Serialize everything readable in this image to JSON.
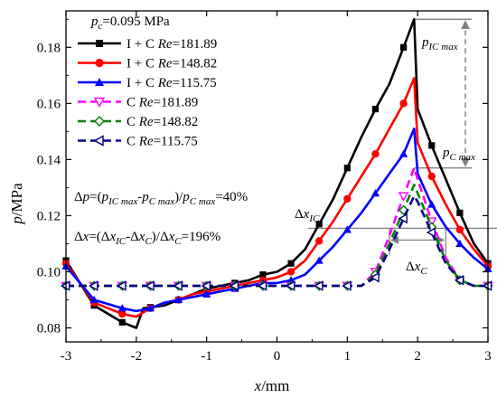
{
  "chart_data": {
    "type": "line",
    "xlabel": {
      "var": "x",
      "unit": "/mm"
    },
    "ylabel": {
      "var": "p",
      "unit": "/MPa"
    },
    "xlim": [
      -3,
      3
    ],
    "ylim": [
      0.075,
      0.193
    ],
    "xticks": [
      -3,
      -2,
      -1,
      0,
      1,
      2,
      3
    ],
    "yticks": [
      0.08,
      0.1,
      0.12,
      0.14,
      0.16,
      0.18
    ],
    "ytick_labels": [
      "0.08",
      "0.10",
      "0.12",
      "0.14",
      "0.16",
      "0.18"
    ],
    "grid": false,
    "legend": {
      "header": {
        "sym": "p",
        "sub": "c",
        "value": "=0.095 MPa"
      },
      "position": "top-left"
    },
    "series": [
      {
        "name": "I + C",
        "re": "181.89",
        "color": "#000000",
        "marker": "square",
        "dash": "solid",
        "x": [
          -3.0,
          -2.6,
          -2.2,
          -2.0,
          -1.9,
          -1.6,
          -1.4,
          -1.2,
          -1.0,
          -0.8,
          -0.6,
          -0.4,
          -0.2,
          0.0,
          0.2,
          0.4,
          0.6,
          0.8,
          1.0,
          1.2,
          1.4,
          1.6,
          1.8,
          1.95,
          2.0,
          2.2,
          2.4,
          2.6,
          2.8,
          3.0
        ],
        "y": [
          0.104,
          0.088,
          0.082,
          0.08,
          0.087,
          0.088,
          0.09,
          0.092,
          0.094,
          0.095,
          0.096,
          0.097,
          0.099,
          0.1,
          0.103,
          0.108,
          0.117,
          0.126,
          0.137,
          0.148,
          0.158,
          0.167,
          0.18,
          0.19,
          0.158,
          0.145,
          0.133,
          0.121,
          0.11,
          0.103
        ],
        "marker_x": [
          -3.0,
          -2.6,
          -2.2,
          -1.8,
          -1.4,
          -1.0,
          -0.6,
          -0.2,
          0.2,
          0.6,
          1.0,
          1.4,
          1.8,
          2.2,
          2.6,
          3.0
        ]
      },
      {
        "name": "I + C",
        "re": "148.82",
        "color": "#ff0000",
        "marker": "circle",
        "dash": "solid",
        "x": [
          -3.0,
          -2.6,
          -2.2,
          -2.0,
          -1.8,
          -1.6,
          -1.4,
          -1.2,
          -1.0,
          -0.8,
          -0.6,
          -0.4,
          -0.2,
          0.0,
          0.2,
          0.4,
          0.6,
          0.8,
          1.0,
          1.2,
          1.4,
          1.6,
          1.8,
          1.95,
          2.0,
          2.2,
          2.4,
          2.6,
          2.8,
          3.0
        ],
        "y": [
          0.103,
          0.089,
          0.085,
          0.084,
          0.087,
          0.089,
          0.09,
          0.092,
          0.093,
          0.094,
          0.095,
          0.096,
          0.097,
          0.098,
          0.1,
          0.104,
          0.111,
          0.118,
          0.126,
          0.134,
          0.142,
          0.151,
          0.16,
          0.169,
          0.146,
          0.134,
          0.124,
          0.115,
          0.108,
          0.102
        ],
        "marker_x": [
          -3.0,
          -2.6,
          -2.2,
          -1.8,
          -1.4,
          -1.0,
          -0.6,
          -0.2,
          0.2,
          0.6,
          1.0,
          1.4,
          1.8,
          2.2,
          2.6,
          3.0
        ]
      },
      {
        "name": "I + C",
        "re": "115.75",
        "color": "#0000ff",
        "marker": "triangle-up",
        "dash": "solid",
        "x": [
          -3.0,
          -2.6,
          -2.2,
          -2.0,
          -1.8,
          -1.6,
          -1.4,
          -1.2,
          -1.0,
          -0.8,
          -0.6,
          -0.4,
          -0.2,
          0.0,
          0.2,
          0.4,
          0.6,
          0.8,
          1.0,
          1.2,
          1.4,
          1.6,
          1.8,
          1.95,
          2.0,
          2.2,
          2.4,
          2.6,
          2.8,
          3.0
        ],
        "y": [
          0.102,
          0.09,
          0.087,
          0.086,
          0.087,
          0.089,
          0.09,
          0.091,
          0.092,
          0.093,
          0.094,
          0.095,
          0.096,
          0.096,
          0.097,
          0.099,
          0.104,
          0.109,
          0.115,
          0.121,
          0.128,
          0.135,
          0.142,
          0.151,
          0.135,
          0.124,
          0.116,
          0.11,
          0.105,
          0.101
        ],
        "marker_x": [
          -3.0,
          -2.6,
          -2.2,
          -1.8,
          -1.4,
          -1.0,
          -0.6,
          -0.2,
          0.2,
          0.6,
          1.0,
          1.4,
          1.8,
          2.2,
          2.6,
          3.0
        ]
      },
      {
        "name": "C",
        "re": "181.89",
        "color": "#ff00ff",
        "marker": "triangle-down-open",
        "dash": "dashed",
        "x": [
          -3.0,
          -2.6,
          -2.2,
          -1.8,
          -1.4,
          -1.0,
          -0.6,
          -0.2,
          0.2,
          0.6,
          1.0,
          1.2,
          1.4,
          1.6,
          1.8,
          1.95,
          2.0,
          2.2,
          2.4,
          2.6,
          2.8,
          3.0
        ],
        "y": [
          0.095,
          0.095,
          0.095,
          0.095,
          0.095,
          0.095,
          0.095,
          0.095,
          0.095,
          0.095,
          0.095,
          0.095,
          0.1,
          0.113,
          0.127,
          0.137,
          0.133,
          0.118,
          0.105,
          0.097,
          0.095,
          0.095
        ],
        "marker_x": [
          -3.0,
          -2.6,
          -2.2,
          -1.8,
          -1.4,
          -1.0,
          -0.6,
          -0.2,
          0.2,
          0.6,
          1.0,
          1.4,
          1.8,
          2.2,
          2.6,
          3.0
        ]
      },
      {
        "name": "C",
        "re": "148.82",
        "color": "#008000",
        "marker": "diamond-open",
        "dash": "dashed",
        "x": [
          -3.0,
          -2.6,
          -2.2,
          -1.8,
          -1.4,
          -1.0,
          -0.6,
          -0.2,
          0.2,
          0.6,
          1.0,
          1.2,
          1.4,
          1.6,
          1.8,
          1.95,
          2.0,
          2.2,
          2.4,
          2.6,
          2.8,
          3.0
        ],
        "y": [
          0.095,
          0.095,
          0.095,
          0.095,
          0.095,
          0.095,
          0.095,
          0.095,
          0.095,
          0.095,
          0.095,
          0.095,
          0.099,
          0.11,
          0.122,
          0.131,
          0.128,
          0.116,
          0.104,
          0.097,
          0.095,
          0.095
        ],
        "marker_x": [
          -3.0,
          -2.6,
          -2.2,
          -1.8,
          -1.4,
          -1.0,
          -0.6,
          -0.2,
          0.2,
          0.6,
          1.0,
          1.4,
          1.8,
          2.2,
          2.6,
          3.0
        ]
      },
      {
        "name": "C",
        "re": "115.75",
        "color": "#000080",
        "marker": "triangle-left-open",
        "dash": "dashed",
        "x": [
          -3.0,
          -2.6,
          -2.2,
          -1.8,
          -1.4,
          -1.0,
          -0.6,
          -0.2,
          0.2,
          0.6,
          1.0,
          1.2,
          1.4,
          1.6,
          1.8,
          1.95,
          2.0,
          2.2,
          2.4,
          2.6,
          2.8,
          3.0
        ],
        "y": [
          0.095,
          0.095,
          0.095,
          0.095,
          0.095,
          0.095,
          0.095,
          0.095,
          0.095,
          0.095,
          0.095,
          0.095,
          0.098,
          0.108,
          0.119,
          0.127,
          0.125,
          0.114,
          0.103,
          0.097,
          0.095,
          0.095
        ],
        "marker_x": [
          -3.0,
          -2.6,
          -2.2,
          -1.8,
          -1.4,
          -1.0,
          -0.6,
          -0.2,
          0.2,
          0.6,
          1.0,
          1.4,
          1.8,
          2.2,
          2.6,
          3.0
        ]
      }
    ],
    "annotations": {
      "pressure_ratio_text": "Δp=(pIC max-pC max)/pC max=40%",
      "width_ratio_text": "Δx=(ΔxIC-ΔxC)/ΔxC=196%",
      "p_ic_max_label": "pIC max",
      "p_c_max_label": "pC max",
      "dx_ic_label": "ΔxIC",
      "dx_c_label": "ΔxC",
      "p_ic_max_value": 0.19,
      "p_c_max_value": 0.137,
      "half_height_level": 0.1155,
      "dx_ic_range": [
        0.6,
        3.0
      ],
      "dx_c_range": [
        1.6,
        2.4
      ],
      "line_color": "#808080"
    }
  }
}
